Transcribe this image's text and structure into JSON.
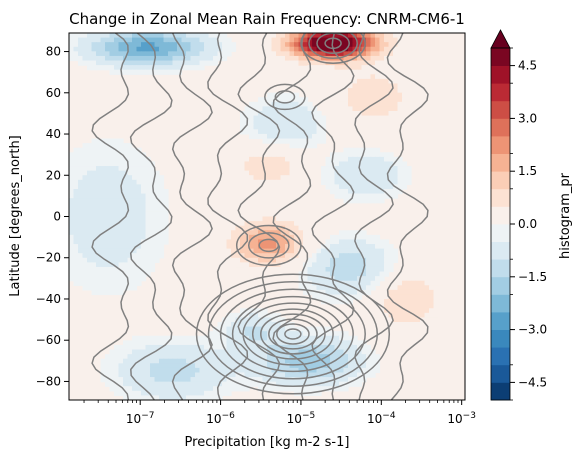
{
  "chart_data": {
    "type": "heatmap",
    "title": "Change in Zonal Mean Rain Frequency: CNRM-CM6-1",
    "xlabel": "Precipitation [kg m-2 s-1]",
    "ylabel": "Latitude [degrees_north]",
    "xscale": "log",
    "xlim": [
      1.3e-08,
      0.0011
    ],
    "ylim": [
      -89,
      89
    ],
    "x_ticks": [
      {
        "value": 1e-07,
        "label": "10−7"
      },
      {
        "value": 1e-06,
        "label": "10−6"
      },
      {
        "value": 1e-05,
        "label": "10−5"
      },
      {
        "value": 0.0001,
        "label": "10−4"
      },
      {
        "value": 0.001,
        "label": "10−3"
      }
    ],
    "y_ticks": [
      {
        "value": 80,
        "label": "80"
      },
      {
        "value": 60,
        "label": "60"
      },
      {
        "value": 40,
        "label": "40"
      },
      {
        "value": 20,
        "label": "20"
      },
      {
        "value": 0,
        "label": "0"
      },
      {
        "value": -20,
        "label": "−20"
      },
      {
        "value": -40,
        "label": "−40"
      },
      {
        "value": -60,
        "label": "−60"
      },
      {
        "value": -80,
        "label": "−80"
      }
    ],
    "colorbar": {
      "label": "histogram_pr",
      "range": [
        -5,
        5
      ],
      "extend": "max",
      "colormap": "RdBu_r",
      "ticks": [
        {
          "value": 4.5,
          "label": "4.5"
        },
        {
          "value": 3.0,
          "label": "3.0"
        },
        {
          "value": 1.5,
          "label": "1.5"
        },
        {
          "value": 0.0,
          "label": "0.0"
        },
        {
          "value": -1.5,
          "label": "−1.5"
        },
        {
          "value": -3.0,
          "label": "−3.0"
        },
        {
          "value": -4.5,
          "label": "−4.5"
        }
      ]
    },
    "features": [
      {
        "lat": 84,
        "logx": -4.6,
        "sigma_lat": 5,
        "sigma_logx": 0.35,
        "amp": 6.0
      },
      {
        "lat": -13,
        "logx": -5.4,
        "sigma_lat": 7,
        "sigma_logx": 0.3,
        "amp": 2.2
      },
      {
        "lat": 25,
        "logx": -5.4,
        "sigma_lat": 7,
        "sigma_logx": 0.3,
        "amp": 0.9
      },
      {
        "lat": -40,
        "logx": -3.7,
        "sigma_lat": 10,
        "sigma_logx": 0.3,
        "amp": 1.0
      },
      {
        "lat": 58,
        "logx": -4.1,
        "sigma_lat": 10,
        "sigma_logx": 0.35,
        "amp": 0.8
      },
      {
        "lat": 82,
        "logx": -6.9,
        "sigma_lat": 6,
        "sigma_logx": 0.5,
        "amp": -2.6
      },
      {
        "lat": -70,
        "logx": -4.9,
        "sigma_lat": 8,
        "sigma_logx": 0.45,
        "amp": -1.8
      },
      {
        "lat": -25,
        "logx": -4.4,
        "sigma_lat": 10,
        "sigma_logx": 0.4,
        "amp": -1.3
      },
      {
        "lat": 20,
        "logx": -4.2,
        "sigma_lat": 8,
        "sigma_logx": 0.35,
        "amp": -1.0
      },
      {
        "lat": 45,
        "logx": -5.2,
        "sigma_lat": 9,
        "sigma_logx": 0.35,
        "amp": -1.0
      },
      {
        "lat": -75,
        "logx": -6.6,
        "sigma_lat": 10,
        "sigma_logx": 0.5,
        "amp": -1.2
      },
      {
        "lat": 0,
        "logx": -7.4,
        "sigma_lat": 25,
        "sigma_logx": 0.5,
        "amp": -0.8
      },
      {
        "lat": -55,
        "logx": -5.6,
        "sigma_lat": 6,
        "sigma_logx": 0.25,
        "amp": -1.0
      }
    ],
    "contours": [
      {
        "center_lat": -57,
        "center_logx": -5.1,
        "radii": [
          0.1,
          0.2,
          0.3,
          0.4,
          0.5,
          0.62,
          0.75,
          0.9,
          1.05,
          1.2
        ]
      },
      {
        "center_lat": -14,
        "center_logx": -5.4,
        "radii": [
          0.12,
          0.25,
          0.4
        ]
      },
      {
        "center_lat": 58,
        "center_logx": -5.2,
        "radii": [
          0.12,
          0.25
        ]
      },
      {
        "center_lat": 84,
        "center_logx": -4.6,
        "radii": [
          0.1,
          0.2,
          0.3,
          0.4
        ]
      }
    ]
  }
}
